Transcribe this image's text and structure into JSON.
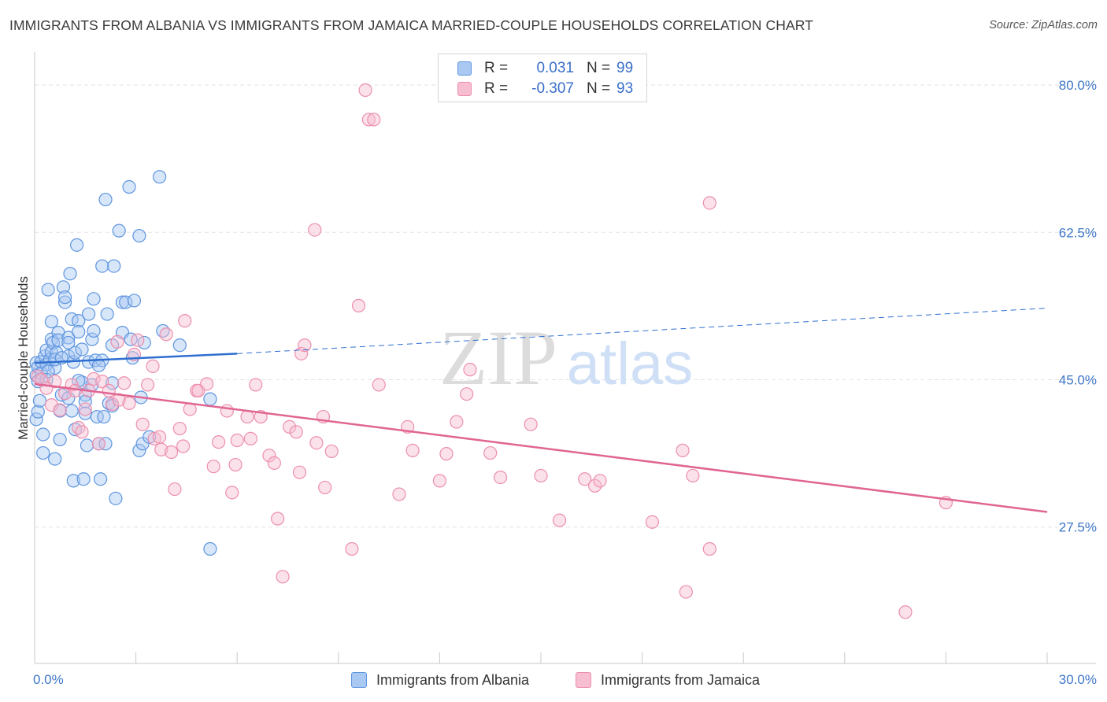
{
  "title": "IMMIGRANTS FROM ALBANIA VS IMMIGRANTS FROM JAMAICA MARRIED-COUPLE HOUSEHOLDS CORRELATION CHART",
  "source": "Source: ZipAtlas.com",
  "watermark": {
    "zip": "ZIP",
    "atlas": "atlas"
  },
  "colors": {
    "albania_fill": "#a9c8f2",
    "albania_stroke": "#5e95e0",
    "albania_line": "#2f6fd0",
    "jamaica_fill": "#f7bdd0",
    "jamaica_stroke": "#ec8fad",
    "jamaica_line": "#e06592",
    "axis_text": "#3f77c8",
    "grid": "#e3e3e3"
  },
  "legend": {
    "albania": {
      "r_label": "R =",
      "r_value": "0.031",
      "n_label": "N =",
      "n_value": "99"
    },
    "jamaica": {
      "r_label": "R =",
      "r_value": "-0.307",
      "n_label": "N =",
      "n_value": "93"
    }
  },
  "bottom_legend": {
    "albania": "Immigrants from Albania",
    "jamaica": "Immigrants from Jamaica"
  },
  "chart_data": {
    "type": "scatter",
    "title": "IMMIGRANTS FROM ALBANIA VS IMMIGRANTS FROM JAMAICA MARRIED-COUPLE HOUSEHOLDS CORRELATION CHART",
    "xlabel": "",
    "ylabel": "Married-couple Households",
    "xlim": [
      0,
      30
    ],
    "ylim": [
      11.3,
      83.0
    ],
    "x_tick_labels": [
      {
        "value": 0,
        "label": "0.0%"
      },
      {
        "value": 30,
        "label": "30.0%"
      }
    ],
    "y_tick_labels": [
      {
        "value": 27.5,
        "label": "27.5%"
      },
      {
        "value": 45.0,
        "label": "45.0%"
      },
      {
        "value": 62.5,
        "label": "62.5%"
      },
      {
        "value": 80.0,
        "label": "80.0%"
      }
    ],
    "series": [
      {
        "name": "Immigrants from Albania",
        "r": 0.031,
        "n": 99,
        "trend": {
          "x": [
            0,
            6.0
          ],
          "y": [
            47.0,
            48.1
          ],
          "dashed_to": {
            "x": 30,
            "y": 53.5
          }
        },
        "points": [
          [
            0.05,
            47.0
          ],
          [
            0.05,
            45.5
          ],
          [
            0.05,
            40.3
          ],
          [
            0.1,
            44.8
          ],
          [
            0.1,
            46.5
          ],
          [
            0.1,
            41.2
          ],
          [
            0.15,
            42.5
          ],
          [
            0.2,
            47.1
          ],
          [
            0.2,
            45.8
          ],
          [
            0.25,
            38.5
          ],
          [
            0.25,
            36.3
          ],
          [
            0.3,
            47.8
          ],
          [
            0.35,
            48.5
          ],
          [
            0.35,
            46.8
          ],
          [
            0.4,
            55.7
          ],
          [
            0.45,
            47.4
          ],
          [
            0.5,
            49.8
          ],
          [
            0.5,
            48.3
          ],
          [
            0.5,
            51.9
          ],
          [
            0.55,
            49.4
          ],
          [
            0.6,
            46.4
          ],
          [
            0.6,
            35.6
          ],
          [
            0.65,
            48.2
          ],
          [
            0.7,
            50.6
          ],
          [
            0.7,
            49.7
          ],
          [
            0.75,
            41.3
          ],
          [
            0.75,
            37.9
          ],
          [
            0.8,
            43.2
          ],
          [
            0.85,
            56.0
          ],
          [
            0.9,
            54.2
          ],
          [
            0.9,
            54.8
          ],
          [
            1.0,
            50.0
          ],
          [
            1.0,
            47.8
          ],
          [
            1.0,
            49.4
          ],
          [
            1.0,
            42.8
          ],
          [
            1.05,
            57.6
          ],
          [
            1.1,
            52.2
          ],
          [
            1.1,
            41.3
          ],
          [
            1.15,
            47.1
          ],
          [
            1.15,
            33.0
          ],
          [
            1.2,
            48.2
          ],
          [
            1.2,
            39.1
          ],
          [
            1.25,
            61.0
          ],
          [
            1.3,
            52.0
          ],
          [
            1.3,
            50.7
          ],
          [
            1.4,
            48.6
          ],
          [
            1.4,
            44.7
          ],
          [
            1.45,
            33.2
          ],
          [
            1.5,
            43.2
          ],
          [
            1.5,
            42.4
          ],
          [
            1.5,
            41.0
          ],
          [
            1.55,
            37.2
          ],
          [
            1.6,
            52.8
          ],
          [
            1.6,
            47.1
          ],
          [
            1.7,
            49.8
          ],
          [
            1.7,
            44.4
          ],
          [
            1.75,
            54.6
          ],
          [
            1.75,
            50.8
          ],
          [
            1.8,
            47.3
          ],
          [
            1.85,
            40.6
          ],
          [
            1.9,
            37.4
          ],
          [
            1.95,
            33.2
          ],
          [
            2.0,
            58.5
          ],
          [
            2.0,
            47.3
          ],
          [
            2.05,
            40.6
          ],
          [
            2.1,
            66.4
          ],
          [
            2.1,
            37.4
          ],
          [
            2.15,
            52.8
          ],
          [
            2.2,
            42.2
          ],
          [
            2.3,
            44.6
          ],
          [
            2.3,
            41.9
          ],
          [
            2.35,
            58.5
          ],
          [
            2.3,
            49.1
          ],
          [
            2.4,
            30.9
          ],
          [
            2.5,
            62.7
          ],
          [
            2.6,
            50.6
          ],
          [
            2.6,
            54.2
          ],
          [
            2.7,
            54.2
          ],
          [
            2.8,
            67.9
          ],
          [
            2.85,
            49.8
          ],
          [
            2.95,
            54.4
          ],
          [
            3.1,
            62.1
          ],
          [
            3.1,
            36.6
          ],
          [
            3.15,
            42.9
          ],
          [
            3.2,
            37.4
          ],
          [
            3.25,
            49.4
          ],
          [
            3.4,
            38.2
          ],
          [
            3.7,
            69.1
          ],
          [
            3.8,
            50.8
          ],
          [
            4.3,
            49.1
          ],
          [
            5.2,
            42.7
          ],
          [
            5.2,
            24.9
          ],
          [
            0.6,
            47.4
          ],
          [
            0.4,
            46.0
          ],
          [
            1.9,
            46.7
          ],
          [
            0.35,
            45.0
          ],
          [
            0.8,
            47.6
          ],
          [
            2.9,
            47.6
          ],
          [
            1.3,
            44.9
          ]
        ]
      },
      {
        "name": "Immigrants from Jamaica",
        "r": -0.307,
        "n": 93,
        "trend": {
          "x": [
            0,
            30
          ],
          "y": [
            44.5,
            29.3
          ]
        },
        "points": [
          [
            0.1,
            45.4
          ],
          [
            0.2,
            45.0
          ],
          [
            0.35,
            44.0
          ],
          [
            0.5,
            42.0
          ],
          [
            0.6,
            44.8
          ],
          [
            0.75,
            41.4
          ],
          [
            0.9,
            43.4
          ],
          [
            1.1,
            44.4
          ],
          [
            1.2,
            43.7
          ],
          [
            1.3,
            39.3
          ],
          [
            1.4,
            38.8
          ],
          [
            1.5,
            41.5
          ],
          [
            1.6,
            43.7
          ],
          [
            1.75,
            45.1
          ],
          [
            1.9,
            37.4
          ],
          [
            2.0,
            44.8
          ],
          [
            2.2,
            43.7
          ],
          [
            2.3,
            42.1
          ],
          [
            2.45,
            49.5
          ],
          [
            2.5,
            42.6
          ],
          [
            2.65,
            44.6
          ],
          [
            2.8,
            42.2
          ],
          [
            2.95,
            48.0
          ],
          [
            3.05,
            49.7
          ],
          [
            3.2,
            39.7
          ],
          [
            3.35,
            44.4
          ],
          [
            3.5,
            46.6
          ],
          [
            3.55,
            38.0
          ],
          [
            3.7,
            38.2
          ],
          [
            3.75,
            36.7
          ],
          [
            3.9,
            50.4
          ],
          [
            4.05,
            36.4
          ],
          [
            4.15,
            32.0
          ],
          [
            4.3,
            39.2
          ],
          [
            4.4,
            37.1
          ],
          [
            4.45,
            52.0
          ],
          [
            4.6,
            41.5
          ],
          [
            4.8,
            43.7
          ],
          [
            4.85,
            43.7
          ],
          [
            5.1,
            44.5
          ],
          [
            5.3,
            34.7
          ],
          [
            5.45,
            37.6
          ],
          [
            5.7,
            41.3
          ],
          [
            5.85,
            31.6
          ],
          [
            5.95,
            34.9
          ],
          [
            6.0,
            37.8
          ],
          [
            6.3,
            40.6
          ],
          [
            6.4,
            38.0
          ],
          [
            6.55,
            44.4
          ],
          [
            6.7,
            40.6
          ],
          [
            6.95,
            36.0
          ],
          [
            7.1,
            35.1
          ],
          [
            7.2,
            28.5
          ],
          [
            7.35,
            21.6
          ],
          [
            7.55,
            39.4
          ],
          [
            7.75,
            38.8
          ],
          [
            7.85,
            34.0
          ],
          [
            7.9,
            48.1
          ],
          [
            8.0,
            49.1
          ],
          [
            8.3,
            62.8
          ],
          [
            8.35,
            37.5
          ],
          [
            8.55,
            40.6
          ],
          [
            8.6,
            32.2
          ],
          [
            8.8,
            36.5
          ],
          [
            9.4,
            24.9
          ],
          [
            9.6,
            53.8
          ],
          [
            9.8,
            79.4
          ],
          [
            9.9,
            75.9
          ],
          [
            10.05,
            75.9
          ],
          [
            10.2,
            44.4
          ],
          [
            10.8,
            31.4
          ],
          [
            11.05,
            39.4
          ],
          [
            11.2,
            36.6
          ],
          [
            12.0,
            33.0
          ],
          [
            12.2,
            36.2
          ],
          [
            12.5,
            40.0
          ],
          [
            12.8,
            43.3
          ],
          [
            12.9,
            46.2
          ],
          [
            13.5,
            36.3
          ],
          [
            13.8,
            33.4
          ],
          [
            14.7,
            39.7
          ],
          [
            15.0,
            33.6
          ],
          [
            15.55,
            28.3
          ],
          [
            16.3,
            33.2
          ],
          [
            16.6,
            32.4
          ],
          [
            16.75,
            33.0
          ],
          [
            18.3,
            28.1
          ],
          [
            19.2,
            36.6
          ],
          [
            19.3,
            19.8
          ],
          [
            19.5,
            33.6
          ],
          [
            20.0,
            24.9
          ],
          [
            20.0,
            66.0
          ],
          [
            25.8,
            17.4
          ],
          [
            27.0,
            30.4
          ]
        ]
      }
    ]
  }
}
